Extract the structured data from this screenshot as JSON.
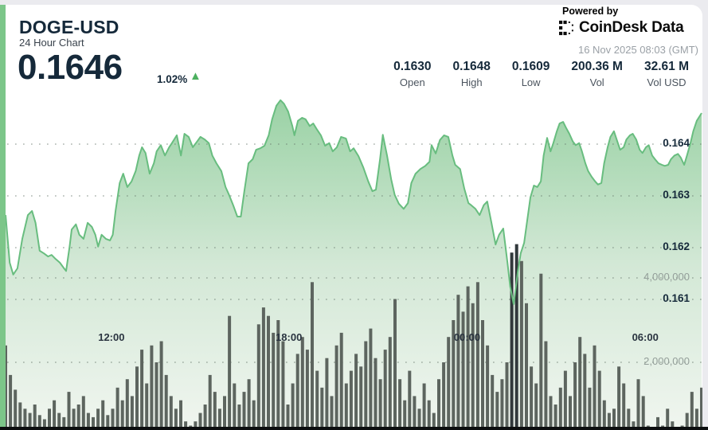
{
  "header": {
    "symbol": "DOGE-USD",
    "subtitle": "24 Hour Chart",
    "last_price": "0.1646",
    "change_pct": "1.02%",
    "direction_icon": "up-triangle",
    "change_color": "#4cb05f"
  },
  "attribution": {
    "powered_by": "Powered by",
    "brand": "CoinDesk Data",
    "timestamp": "16 Nov 2025 08:03 (GMT)"
  },
  "stats": {
    "items": [
      {
        "value": "0.1630",
        "label": "Open"
      },
      {
        "value": "0.1648",
        "label": "High"
      },
      {
        "value": "0.1609",
        "label": "Low"
      },
      {
        "value": "200.36 M",
        "label": "Vol"
      },
      {
        "value": "32.61 M",
        "label": "Vol USD"
      }
    ]
  },
  "chart_data": {
    "type": "area",
    "title": "DOGE-USD 24 hour price with volume",
    "open": 0.163,
    "high": 0.1648,
    "low": 0.1609,
    "last": 0.1646,
    "x_ticks": [
      "12:00",
      "18:00",
      "00:00",
      "06:00"
    ],
    "price_axis": {
      "side": "right",
      "ticks": [
        0.164,
        0.163,
        0.162,
        0.161
      ]
    },
    "volume_axis": {
      "side": "right",
      "ticks": [
        "4,000,000",
        "2,000,000"
      ]
    },
    "colors": {
      "line": "#68bd7f",
      "fill_top": "#98d1a3",
      "fill_mid": "#d3e8d6",
      "fill_bottom": "#f1f6f0",
      "bar": "#5d655f",
      "bar_dark": "#31383b",
      "grid_dot": "#647369",
      "accent_strip": "#7cc689"
    },
    "price_points": [
      [
        0.0,
        0.16263
      ],
      [
        0.006,
        0.16171
      ],
      [
        0.011,
        0.16148
      ],
      [
        0.017,
        0.1616
      ],
      [
        0.024,
        0.16217
      ],
      [
        0.032,
        0.16263
      ],
      [
        0.038,
        0.16271
      ],
      [
        0.043,
        0.16248
      ],
      [
        0.049,
        0.16194
      ],
      [
        0.055,
        0.16189
      ],
      [
        0.061,
        0.16183
      ],
      [
        0.066,
        0.16186
      ],
      [
        0.072,
        0.16178
      ],
      [
        0.078,
        0.16171
      ],
      [
        0.084,
        0.1616
      ],
      [
        0.087,
        0.16155
      ],
      [
        0.092,
        0.16202
      ],
      [
        0.095,
        0.16235
      ],
      [
        0.101,
        0.16245
      ],
      [
        0.106,
        0.16225
      ],
      [
        0.112,
        0.16217
      ],
      [
        0.118,
        0.16248
      ],
      [
        0.124,
        0.1624
      ],
      [
        0.129,
        0.16225
      ],
      [
        0.133,
        0.16202
      ],
      [
        0.138,
        0.16225
      ],
      [
        0.144,
        0.16217
      ],
      [
        0.15,
        0.16214
      ],
      [
        0.154,
        0.16225
      ],
      [
        0.158,
        0.16271
      ],
      [
        0.164,
        0.16325
      ],
      [
        0.169,
        0.16343
      ],
      [
        0.175,
        0.16317
      ],
      [
        0.181,
        0.16328
      ],
      [
        0.187,
        0.16348
      ],
      [
        0.192,
        0.16378
      ],
      [
        0.196,
        0.16394
      ],
      [
        0.201,
        0.16383
      ],
      [
        0.207,
        0.16343
      ],
      [
        0.213,
        0.16363
      ],
      [
        0.217,
        0.16386
      ],
      [
        0.223,
        0.16398
      ],
      [
        0.229,
        0.16378
      ],
      [
        0.235,
        0.16394
      ],
      [
        0.239,
        0.16402
      ],
      [
        0.246,
        0.16417
      ],
      [
        0.252,
        0.16378
      ],
      [
        0.257,
        0.1642
      ],
      [
        0.263,
        0.16414
      ],
      [
        0.269,
        0.16394
      ],
      [
        0.275,
        0.16405
      ],
      [
        0.28,
        0.16414
      ],
      [
        0.286,
        0.16409
      ],
      [
        0.292,
        0.16402
      ],
      [
        0.297,
        0.16378
      ],
      [
        0.303,
        0.16363
      ],
      [
        0.31,
        0.16348
      ],
      [
        0.316,
        0.16317
      ],
      [
        0.321,
        0.16302
      ],
      [
        0.327,
        0.16282
      ],
      [
        0.333,
        0.1626
      ],
      [
        0.338,
        0.1626
      ],
      [
        0.343,
        0.16309
      ],
      [
        0.349,
        0.16363
      ],
      [
        0.355,
        0.16371
      ],
      [
        0.36,
        0.16389
      ],
      [
        0.366,
        0.16392
      ],
      [
        0.372,
        0.16397
      ],
      [
        0.378,
        0.16417
      ],
      [
        0.383,
        0.16448
      ],
      [
        0.389,
        0.16474
      ],
      [
        0.395,
        0.16485
      ],
      [
        0.4,
        0.16478
      ],
      [
        0.406,
        0.16463
      ],
      [
        0.412,
        0.16435
      ],
      [
        0.415,
        0.16417
      ],
      [
        0.42,
        0.16445
      ],
      [
        0.426,
        0.16451
      ],
      [
        0.431,
        0.16448
      ],
      [
        0.437,
        0.16435
      ],
      [
        0.442,
        0.1644
      ],
      [
        0.447,
        0.16429
      ],
      [
        0.453,
        0.16417
      ],
      [
        0.459,
        0.16397
      ],
      [
        0.465,
        0.16402
      ],
      [
        0.47,
        0.16386
      ],
      [
        0.476,
        0.16394
      ],
      [
        0.482,
        0.16414
      ],
      [
        0.489,
        0.16411
      ],
      [
        0.495,
        0.16386
      ],
      [
        0.5,
        0.16392
      ],
      [
        0.507,
        0.16377
      ],
      [
        0.514,
        0.16355
      ],
      [
        0.521,
        0.16328
      ],
      [
        0.527,
        0.16309
      ],
      [
        0.532,
        0.16312
      ],
      [
        0.538,
        0.16371
      ],
      [
        0.542,
        0.16418
      ],
      [
        0.548,
        0.16378
      ],
      [
        0.554,
        0.16332
      ],
      [
        0.559,
        0.16302
      ],
      [
        0.565,
        0.16285
      ],
      [
        0.572,
        0.16275
      ],
      [
        0.578,
        0.16286
      ],
      [
        0.583,
        0.16325
      ],
      [
        0.589,
        0.16343
      ],
      [
        0.596,
        0.16352
      ],
      [
        0.603,
        0.16358
      ],
      [
        0.609,
        0.16366
      ],
      [
        0.612,
        0.16398
      ],
      [
        0.618,
        0.16382
      ],
      [
        0.624,
        0.16408
      ],
      [
        0.63,
        0.16417
      ],
      [
        0.636,
        0.16414
      ],
      [
        0.642,
        0.16378
      ],
      [
        0.646,
        0.1636
      ],
      [
        0.653,
        0.16352
      ],
      [
        0.659,
        0.16314
      ],
      [
        0.665,
        0.16286
      ],
      [
        0.669,
        0.16282
      ],
      [
        0.675,
        0.16275
      ],
      [
        0.681,
        0.16263
      ],
      [
        0.687,
        0.16282
      ],
      [
        0.692,
        0.16289
      ],
      [
        0.698,
        0.16248
      ],
      [
        0.704,
        0.16206
      ],
      [
        0.709,
        0.16225
      ],
      [
        0.715,
        0.16237
      ],
      [
        0.721,
        0.16171
      ],
      [
        0.725,
        0.16125
      ],
      [
        0.73,
        0.16091
      ],
      [
        0.736,
        0.16155
      ],
      [
        0.74,
        0.16189
      ],
      [
        0.745,
        0.16209
      ],
      [
        0.749,
        0.16248
      ],
      [
        0.754,
        0.16297
      ],
      [
        0.759,
        0.1632
      ],
      [
        0.764,
        0.16317
      ],
      [
        0.769,
        0.16328
      ],
      [
        0.773,
        0.16378
      ],
      [
        0.778,
        0.16412
      ],
      [
        0.783,
        0.16386
      ],
      [
        0.787,
        0.16402
      ],
      [
        0.792,
        0.16425
      ],
      [
        0.796,
        0.1644
      ],
      [
        0.801,
        0.16443
      ],
      [
        0.805,
        0.16432
      ],
      [
        0.81,
        0.1642
      ],
      [
        0.815,
        0.16405
      ],
      [
        0.819,
        0.16398
      ],
      [
        0.824,
        0.16402
      ],
      [
        0.828,
        0.16386
      ],
      [
        0.833,
        0.16363
      ],
      [
        0.837,
        0.16348
      ],
      [
        0.842,
        0.16337
      ],
      [
        0.847,
        0.16328
      ],
      [
        0.851,
        0.16322
      ],
      [
        0.856,
        0.16325
      ],
      [
        0.86,
        0.16363
      ],
      [
        0.865,
        0.16394
      ],
      [
        0.869,
        0.16414
      ],
      [
        0.874,
        0.16425
      ],
      [
        0.879,
        0.16405
      ],
      [
        0.883,
        0.16389
      ],
      [
        0.888,
        0.16394
      ],
      [
        0.892,
        0.16409
      ],
      [
        0.897,
        0.16417
      ],
      [
        0.901,
        0.1642
      ],
      [
        0.906,
        0.16409
      ],
      [
        0.911,
        0.16389
      ],
      [
        0.915,
        0.16383
      ],
      [
        0.92,
        0.16394
      ],
      [
        0.924,
        0.16398
      ],
      [
        0.929,
        0.16378
      ],
      [
        0.933,
        0.16371
      ],
      [
        0.938,
        0.16363
      ],
      [
        0.943,
        0.1636
      ],
      [
        0.947,
        0.16358
      ],
      [
        0.952,
        0.1636
      ],
      [
        0.956,
        0.16371
      ],
      [
        0.961,
        0.16378
      ],
      [
        0.966,
        0.16381
      ],
      [
        0.97,
        0.16374
      ],
      [
        0.975,
        0.1636
      ],
      [
        0.979,
        0.16378
      ],
      [
        0.984,
        0.16402
      ],
      [
        0.988,
        0.16425
      ],
      [
        0.993,
        0.16445
      ],
      [
        1.0,
        0.1646
      ]
    ],
    "volume_bars_millions": [
      2.4,
      1.7,
      1.35,
      1.05,
      0.9,
      0.8,
      1.0,
      0.75,
      0.65,
      0.9,
      1.1,
      0.8,
      0.7,
      1.3,
      0.9,
      1.0,
      1.2,
      0.8,
      0.7,
      0.9,
      1.1,
      0.75,
      0.9,
      1.4,
      1.1,
      1.6,
      1.2,
      1.9,
      2.3,
      1.5,
      2.4,
      2.0,
      2.5,
      1.7,
      1.2,
      0.9,
      1.1,
      0.6,
      0.5,
      0.6,
      0.8,
      1.0,
      1.7,
      1.3,
      0.9,
      1.2,
      3.1,
      1.5,
      1.0,
      1.3,
      1.6,
      1.1,
      2.9,
      3.3,
      3.1,
      2.7,
      3.0,
      2.5,
      1.0,
      1.5,
      2.2,
      2.6,
      2.3,
      3.9,
      1.8,
      1.4,
      2.1,
      1.2,
      2.4,
      2.7,
      1.5,
      1.8,
      2.2,
      1.9,
      2.5,
      2.8,
      2.1,
      1.6,
      2.3,
      2.6,
      3.5,
      1.6,
      1.1,
      1.8,
      1.2,
      0.9,
      1.5,
      1.1,
      0.8,
      1.6,
      2.0,
      2.6,
      3.0,
      3.6,
      3.2,
      3.8,
      3.4,
      3.9,
      3.0,
      2.4,
      1.7,
      1.3,
      1.6,
      2.0,
      4.6,
      4.8,
      4.4,
      3.4,
      1.9,
      1.5,
      4.1,
      2.5,
      1.2,
      1.0,
      1.4,
      1.8,
      1.2,
      2.0,
      2.6,
      2.2,
      1.4,
      2.4,
      1.8,
      1.1,
      0.8,
      0.9,
      1.9,
      1.5,
      0.9,
      0.6,
      1.6,
      1.2,
      0.5,
      0.4,
      0.7,
      0.5,
      0.9,
      0.6,
      0.4,
      0.5,
      0.8,
      1.3,
      0.9,
      1.4
    ],
    "dark_bar_indices": [
      104,
      105
    ]
  }
}
